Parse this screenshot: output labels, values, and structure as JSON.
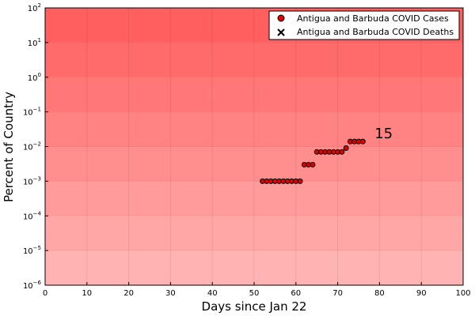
{
  "chart_data": {
    "type": "scatter",
    "xlabel": "Days since Jan 22",
    "ylabel": "Percent of Country",
    "xlim": [
      0,
      100
    ],
    "ylim": [
      1e-06,
      100
    ],
    "yscale": "log",
    "grid": true,
    "legend_position": "top-right",
    "x_ticks": [
      "0",
      "10",
      "20",
      "30",
      "40",
      "50",
      "60",
      "70",
      "80",
      "90",
      "100"
    ],
    "x_tick_values": [
      0,
      10,
      20,
      30,
      40,
      50,
      60,
      70,
      80,
      90,
      100
    ],
    "y_ticks": [
      {
        "base": "10",
        "exp": "−6",
        "value": 1e-06
      },
      {
        "base": "10",
        "exp": "−5",
        "value": 1e-05
      },
      {
        "base": "10",
        "exp": "−4",
        "value": 0.0001
      },
      {
        "base": "10",
        "exp": "−3",
        "value": 0.001
      },
      {
        "base": "10",
        "exp": "−2",
        "value": 0.01
      },
      {
        "base": "10",
        "exp": "−1",
        "value": 0.1
      },
      {
        "base": "10",
        "exp": "0",
        "value": 1
      },
      {
        "base": "10",
        "exp": "1",
        "value": 10
      },
      {
        "base": "10",
        "exp": "2",
        "value": 100
      }
    ],
    "series": [
      {
        "name": "Antigua and Barbuda COVID Cases",
        "marker": "circle",
        "color": "#e00000",
        "x": [
          52,
          53,
          54,
          55,
          56,
          57,
          58,
          59,
          60,
          61,
          62,
          63,
          64,
          65,
          66,
          67,
          68,
          69,
          70,
          71,
          72,
          73,
          74,
          75,
          76
        ],
        "y": [
          0.001,
          0.001,
          0.001,
          0.001,
          0.001,
          0.001,
          0.001,
          0.001,
          0.001,
          0.001,
          0.003,
          0.003,
          0.003,
          0.007,
          0.007,
          0.007,
          0.007,
          0.007,
          0.007,
          0.007,
          0.009,
          0.014,
          0.014,
          0.014,
          0.014
        ]
      },
      {
        "name": "Antigua and Barbuda COVID Deaths",
        "marker": "x",
        "color": "#000000",
        "x": [],
        "y": []
      }
    ],
    "annotations": [
      {
        "text": "15",
        "x": 81,
        "y": 0.024
      }
    ],
    "background_gradient": {
      "top_color": "#ff5f5f",
      "bottom_color": "#ffb3b3"
    }
  }
}
